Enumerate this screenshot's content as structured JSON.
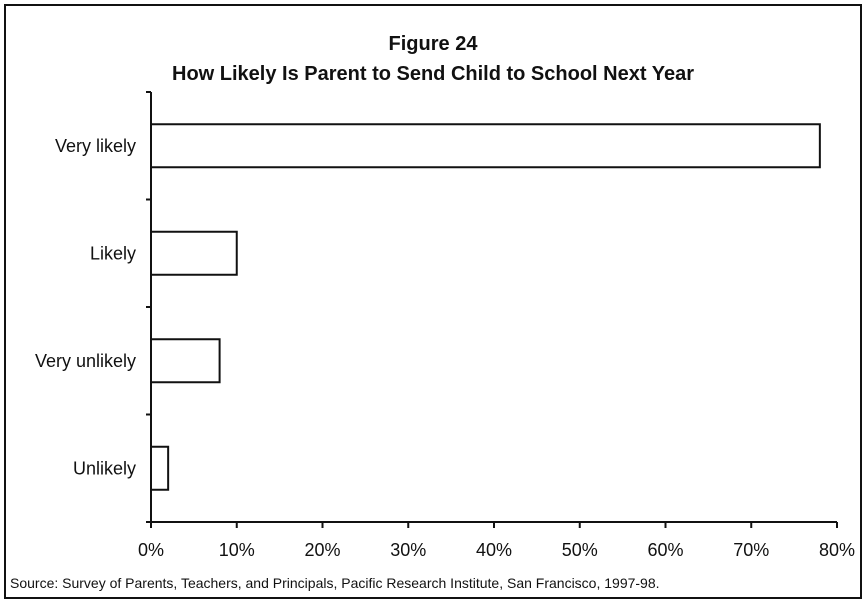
{
  "figure_number": "Figure 24",
  "source": "Source: Survey of Parents, Teachers, and Principals, Pacific Research Institute, San Francisco, 1997-98.",
  "chart_data": {
    "type": "bar",
    "orientation": "horizontal",
    "title": "How Likely Is Parent to Send Child to School Next Year",
    "categories": [
      "Very likely",
      "Likely",
      "Very unlikely",
      "Unlikely"
    ],
    "values": [
      78,
      10,
      8,
      2
    ],
    "xlim": [
      0,
      80
    ],
    "xticks": [
      "0%",
      "10%",
      "20%",
      "30%",
      "40%",
      "50%",
      "60%",
      "70%",
      "80%"
    ],
    "grid": false,
    "legend": "none",
    "bar_fill": "#ffffff",
    "bar_stroke": "#111111"
  }
}
